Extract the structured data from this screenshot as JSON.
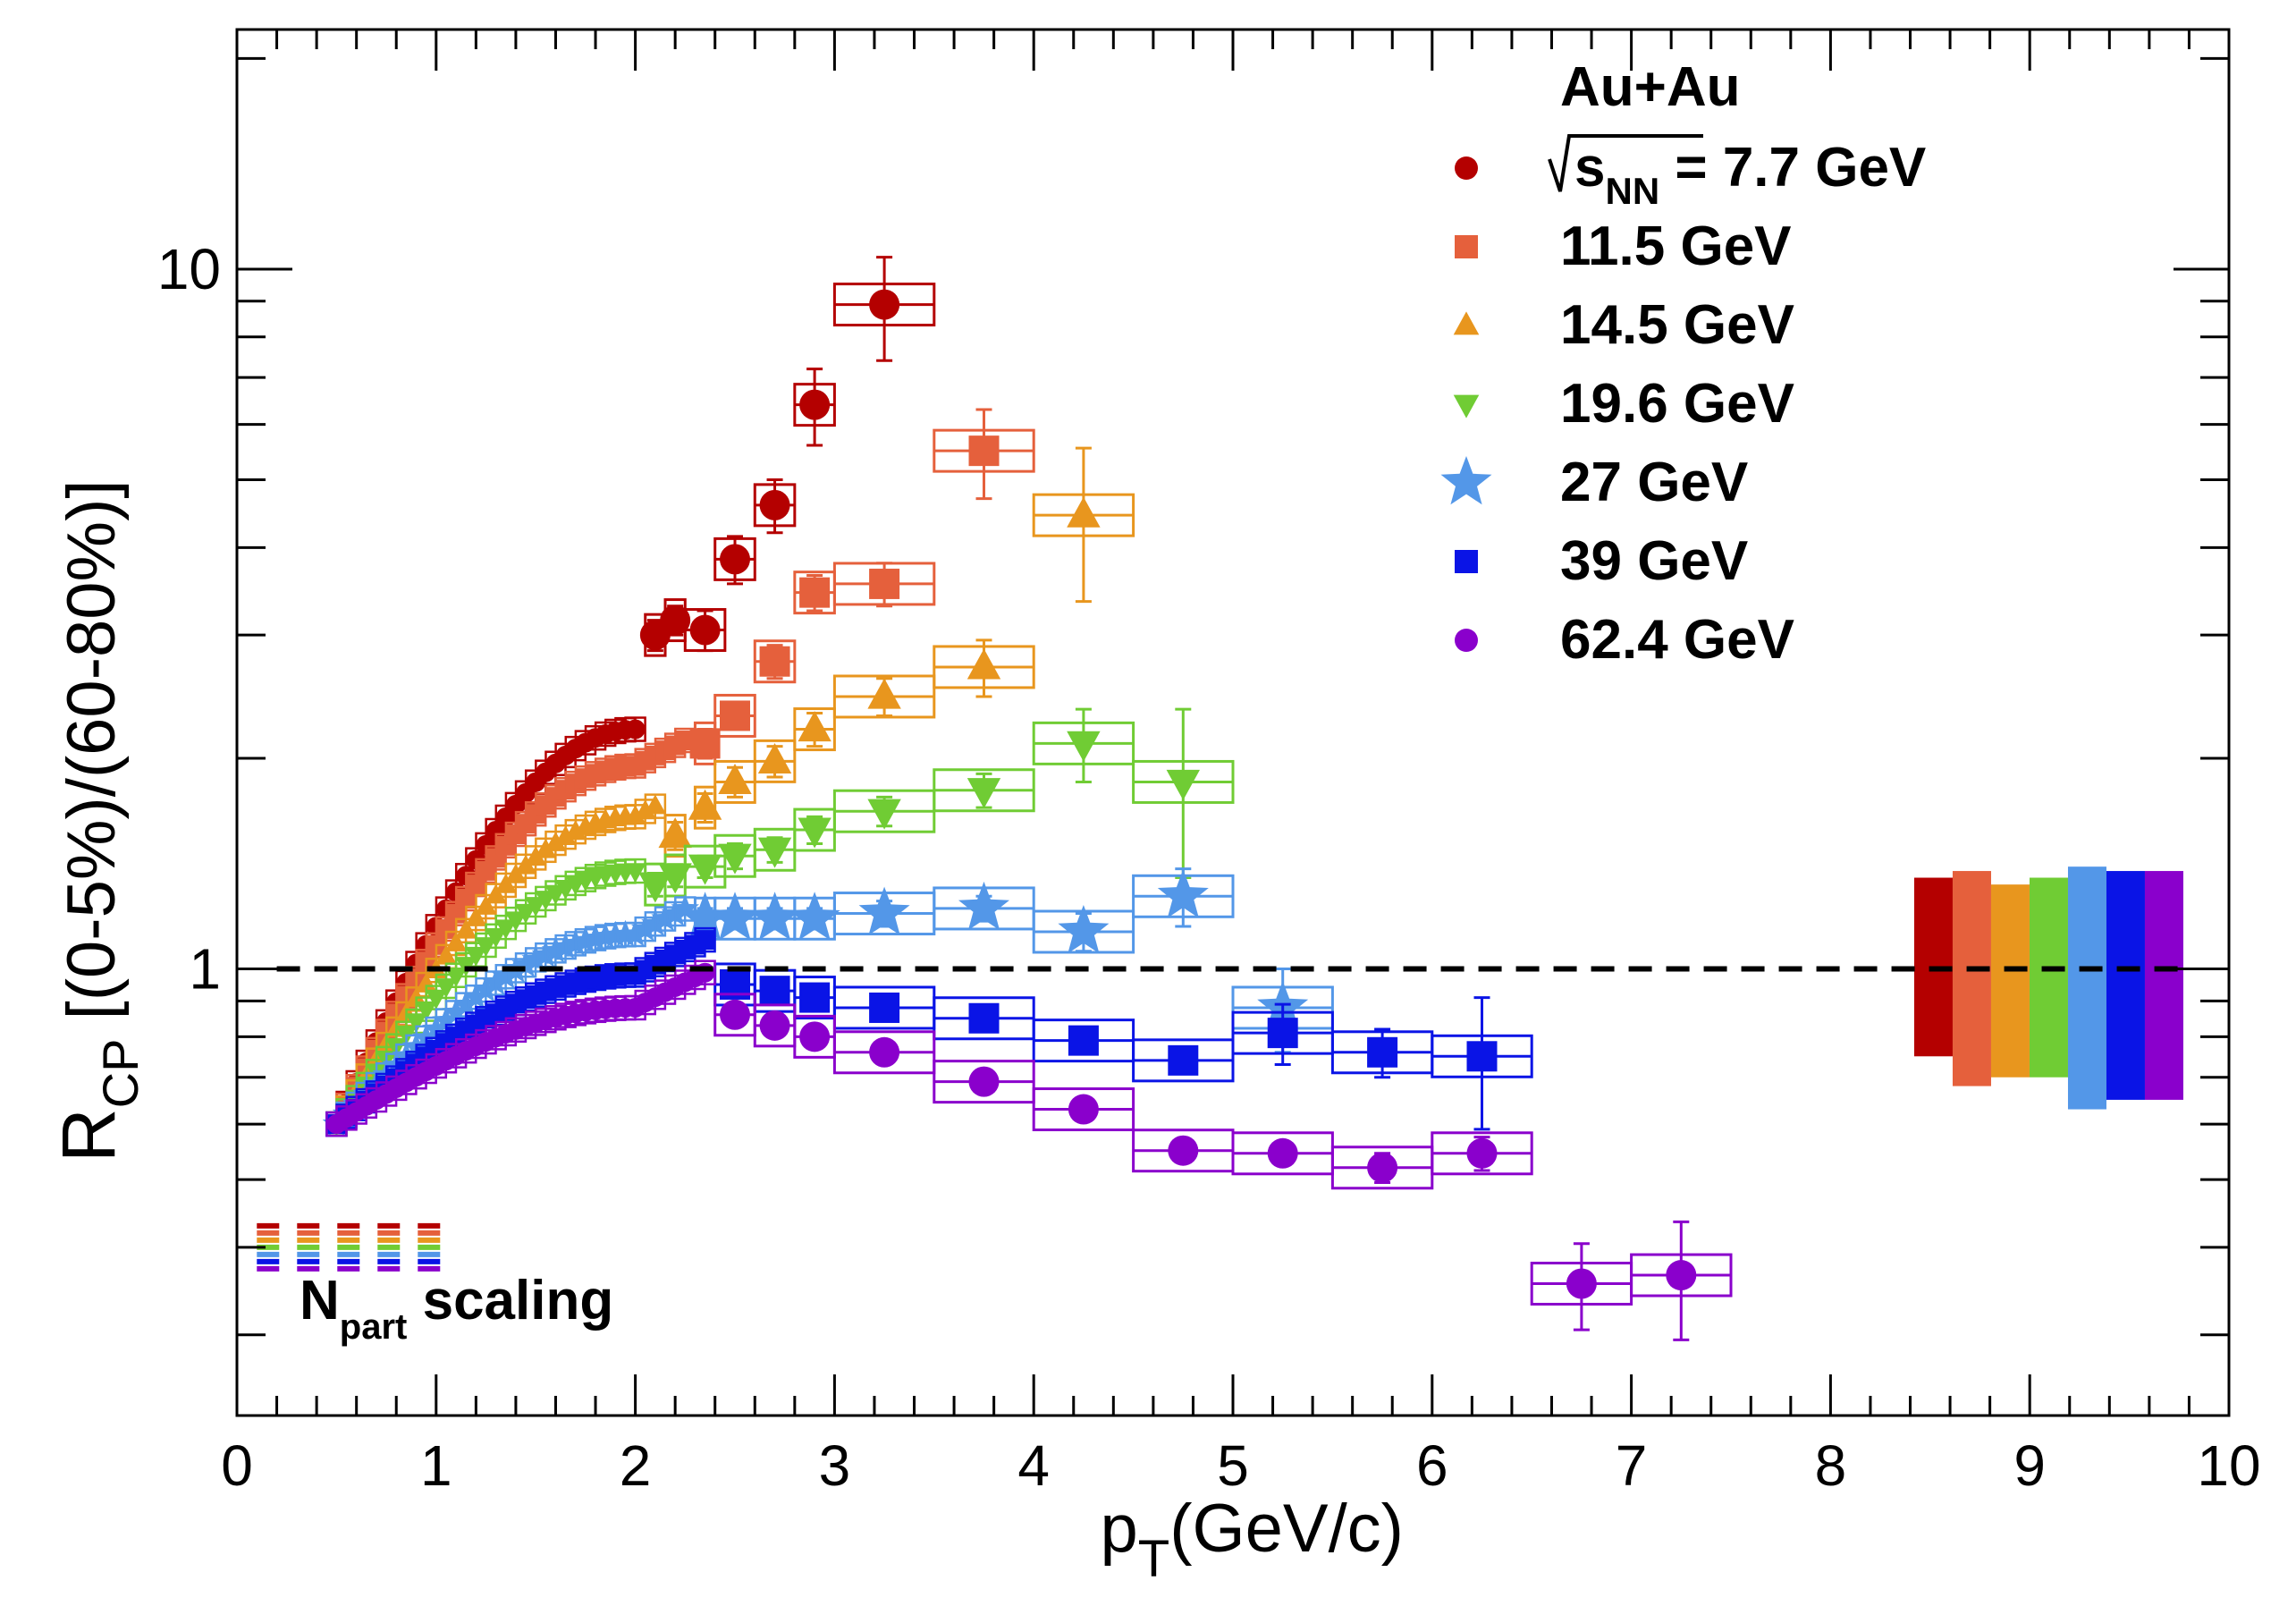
{
  "chart_data": {
    "type": "scatter",
    "title": "",
    "xlabel": {
      "main": "p",
      "sub": "T",
      "rest": "(GeV/c)"
    },
    "ylabel": {
      "main": "R",
      "sub": "CP",
      "rest": " [(0-5%)/(60-80%)]"
    },
    "x_range": [
      0,
      10
    ],
    "y_range": [
      0.23,
      22
    ],
    "y_scale": "log",
    "x_tick_labels": [
      "0",
      "1",
      "2",
      "3",
      "4",
      "5",
      "6",
      "7",
      "8",
      "9",
      "10"
    ],
    "y_tick_labels": [
      "1",
      "10"
    ],
    "reference_line": {
      "y": 1.0,
      "style": "dashed",
      "x_start": 0.2,
      "x_end": 9.8
    },
    "legend": {
      "system": "Au+Au",
      "energy_prefix": "s",
      "energy_sub": "NN",
      "energy_suffix": " = 7.7 GeV",
      "position": "top-right"
    },
    "npart_label": {
      "main": "N",
      "sub": "part",
      "rest": " scaling",
      "y": 0.4
    },
    "series": [
      {
        "name": "7.7 GeV",
        "legend_label": "7.7 GeV",
        "color": "#b40000",
        "marker": "circle",
        "low_pt": {
          "a": 0.6,
          "b": 2.2,
          "c": 0.75,
          "pmin": 0.5,
          "pmax": 2.0,
          "step": 0.05
        },
        "points": [
          [
            2.1,
            3.0
          ],
          [
            2.2,
            3.15
          ],
          [
            2.35,
            3.05
          ],
          [
            2.5,
            3.85
          ],
          [
            2.7,
            4.6
          ],
          [
            2.9,
            6.4
          ],
          [
            3.25,
            8.9
          ]
        ],
        "yerr": [
          0.15,
          0.15,
          0.2,
          0.3,
          0.4,
          0.8,
          1.5
        ],
        "box_halfwidth": [
          0.05,
          0.05,
          0.1,
          0.1,
          0.1,
          0.1,
          0.25
        ],
        "norm_band": [
          0.75,
          1.35
        ]
      },
      {
        "name": "11.5 GeV",
        "legend_label": "11.5 GeV",
        "color": "#e5603c",
        "marker": "square",
        "low_pt": {
          "a": 0.6,
          "b": 1.95,
          "c": 0.65,
          "pmin": 0.5,
          "pmax": 2.25,
          "step": 0.05
        },
        "points": [
          [
            2.35,
            2.1
          ],
          [
            2.5,
            2.3
          ],
          [
            2.7,
            2.75
          ],
          [
            2.9,
            3.45
          ],
          [
            3.25,
            3.55
          ],
          [
            3.75,
            5.5
          ]
        ],
        "yerr": [
          0.1,
          0.1,
          0.15,
          0.2,
          0.25,
          0.8
        ],
        "box_halfwidth": [
          0.05,
          0.1,
          0.1,
          0.1,
          0.25,
          0.25
        ],
        "norm_band": [
          0.68,
          1.38
        ]
      },
      {
        "name": "14.5 GeV",
        "legend_label": "14.5 GeV",
        "color": "#e8961e",
        "marker": "triangle-up",
        "low_pt": {
          "a": 0.6,
          "b": 1.65,
          "c": 0.55,
          "pmin": 0.5,
          "pmax": 2.1,
          "step": 0.05
        },
        "points": [
          [
            2.2,
            1.55
          ],
          [
            2.35,
            1.7
          ],
          [
            2.5,
            1.85
          ],
          [
            2.7,
            1.98
          ],
          [
            2.9,
            2.2
          ],
          [
            3.25,
            2.45
          ],
          [
            3.75,
            2.7
          ],
          [
            4.25,
            4.45
          ]
        ],
        "yerr": [
          0.07,
          0.08,
          0.09,
          0.1,
          0.12,
          0.15,
          0.25,
          1.1
        ],
        "box_halfwidth": [
          0.05,
          0.05,
          0.1,
          0.1,
          0.1,
          0.25,
          0.25,
          0.25
        ],
        "norm_band": [
          0.7,
          1.32
        ]
      },
      {
        "name": "19.6 GeV",
        "legend_label": "19.6 GeV",
        "color": "#70cc34",
        "marker": "triangle-down",
        "low_pt": {
          "a": 0.6,
          "b": 1.38,
          "c": 0.45,
          "pmin": 0.5,
          "pmax": 2.0,
          "step": 0.05
        },
        "points": [
          [
            2.1,
            1.32
          ],
          [
            2.2,
            1.36
          ],
          [
            2.35,
            1.4
          ],
          [
            2.5,
            1.45
          ],
          [
            2.7,
            1.48
          ],
          [
            2.9,
            1.58
          ],
          [
            3.25,
            1.68
          ],
          [
            3.75,
            1.8
          ],
          [
            4.25,
            2.1
          ],
          [
            4.75,
            1.85
          ]
        ],
        "yerr": [
          0.05,
          0.05,
          0.05,
          0.06,
          0.06,
          0.07,
          0.08,
          0.1,
          0.25,
          0.5
        ],
        "box_halfwidth": [
          0.05,
          0.05,
          0.1,
          0.1,
          0.1,
          0.1,
          0.25,
          0.25,
          0.25,
          0.25
        ],
        "norm_band": [
          0.7,
          1.35
        ]
      },
      {
        "name": "27 GeV",
        "legend_label": "27 GeV",
        "color": "#5397e8",
        "marker": "star",
        "low_pt": {
          "a": 0.6,
          "b": 1.12,
          "c": 0.4,
          "pmin": 0.5,
          "pmax": 2.25,
          "step": 0.05
        },
        "points": [
          [
            2.35,
            1.18
          ],
          [
            2.5,
            1.18
          ],
          [
            2.7,
            1.18
          ],
          [
            2.9,
            1.18
          ],
          [
            3.25,
            1.2
          ],
          [
            3.75,
            1.22
          ],
          [
            4.25,
            1.13
          ],
          [
            4.75,
            1.27
          ],
          [
            5.25,
            0.88
          ]
        ],
        "yerr": [
          0.04,
          0.04,
          0.04,
          0.04,
          0.05,
          0.05,
          0.07,
          0.12,
          0.12
        ],
        "box_halfwidth": [
          0.05,
          0.1,
          0.1,
          0.1,
          0.25,
          0.25,
          0.25,
          0.25,
          0.25
        ],
        "norm_band": [
          0.63,
          1.4
        ]
      },
      {
        "name": "39 GeV",
        "legend_label": "39 GeV",
        "color": "#0a14e6",
        "marker": "square",
        "low_pt": {
          "a": 0.6,
          "b": 0.98,
          "c": 0.35,
          "pmin": 0.5,
          "pmax": 2.35,
          "step": 0.05
        },
        "points": [
          [
            2.5,
            0.95
          ],
          [
            2.7,
            0.93
          ],
          [
            2.9,
            0.91
          ],
          [
            3.25,
            0.88
          ],
          [
            3.75,
            0.85
          ],
          [
            4.25,
            0.79
          ],
          [
            4.75,
            0.74
          ],
          [
            5.25,
            0.81
          ],
          [
            5.75,
            0.76
          ],
          [
            6.25,
            0.75
          ]
        ],
        "yerr": [
          0.03,
          0.03,
          0.03,
          0.03,
          0.03,
          0.03,
          0.03,
          0.08,
          0.06,
          0.16
        ],
        "box_halfwidth": [
          0.1,
          0.1,
          0.1,
          0.25,
          0.25,
          0.25,
          0.25,
          0.25,
          0.25,
          0.25
        ],
        "norm_band": [
          0.65,
          1.38
        ]
      },
      {
        "name": "62.4 GeV",
        "legend_label": "62.4 GeV",
        "color": "#8a00cc",
        "marker": "circle",
        "low_pt": {
          "a": 0.6,
          "b": 0.88,
          "c": 0.3,
          "pmin": 0.5,
          "pmax": 2.35,
          "step": 0.05
        },
        "points": [
          [
            2.5,
            0.86
          ],
          [
            2.7,
            0.83
          ],
          [
            2.9,
            0.8
          ],
          [
            3.25,
            0.76
          ],
          [
            3.75,
            0.69
          ],
          [
            4.25,
            0.63
          ],
          [
            4.75,
            0.55
          ],
          [
            5.25,
            0.545
          ],
          [
            5.75,
            0.52
          ],
          [
            6.25,
            0.545
          ],
          [
            6.75,
            0.355
          ],
          [
            7.25,
            0.365
          ]
        ],
        "yerr": [
          0.02,
          0.02,
          0.02,
          0.02,
          0.02,
          0.02,
          0.02,
          0.02,
          0.025,
          0.03,
          0.05,
          0.07
        ],
        "box_halfwidth": [
          0.1,
          0.1,
          0.1,
          0.25,
          0.25,
          0.25,
          0.25,
          0.25,
          0.25,
          0.25,
          0.25,
          0.25
        ],
        "norm_band": [
          0.65,
          1.38
        ]
      }
    ]
  }
}
